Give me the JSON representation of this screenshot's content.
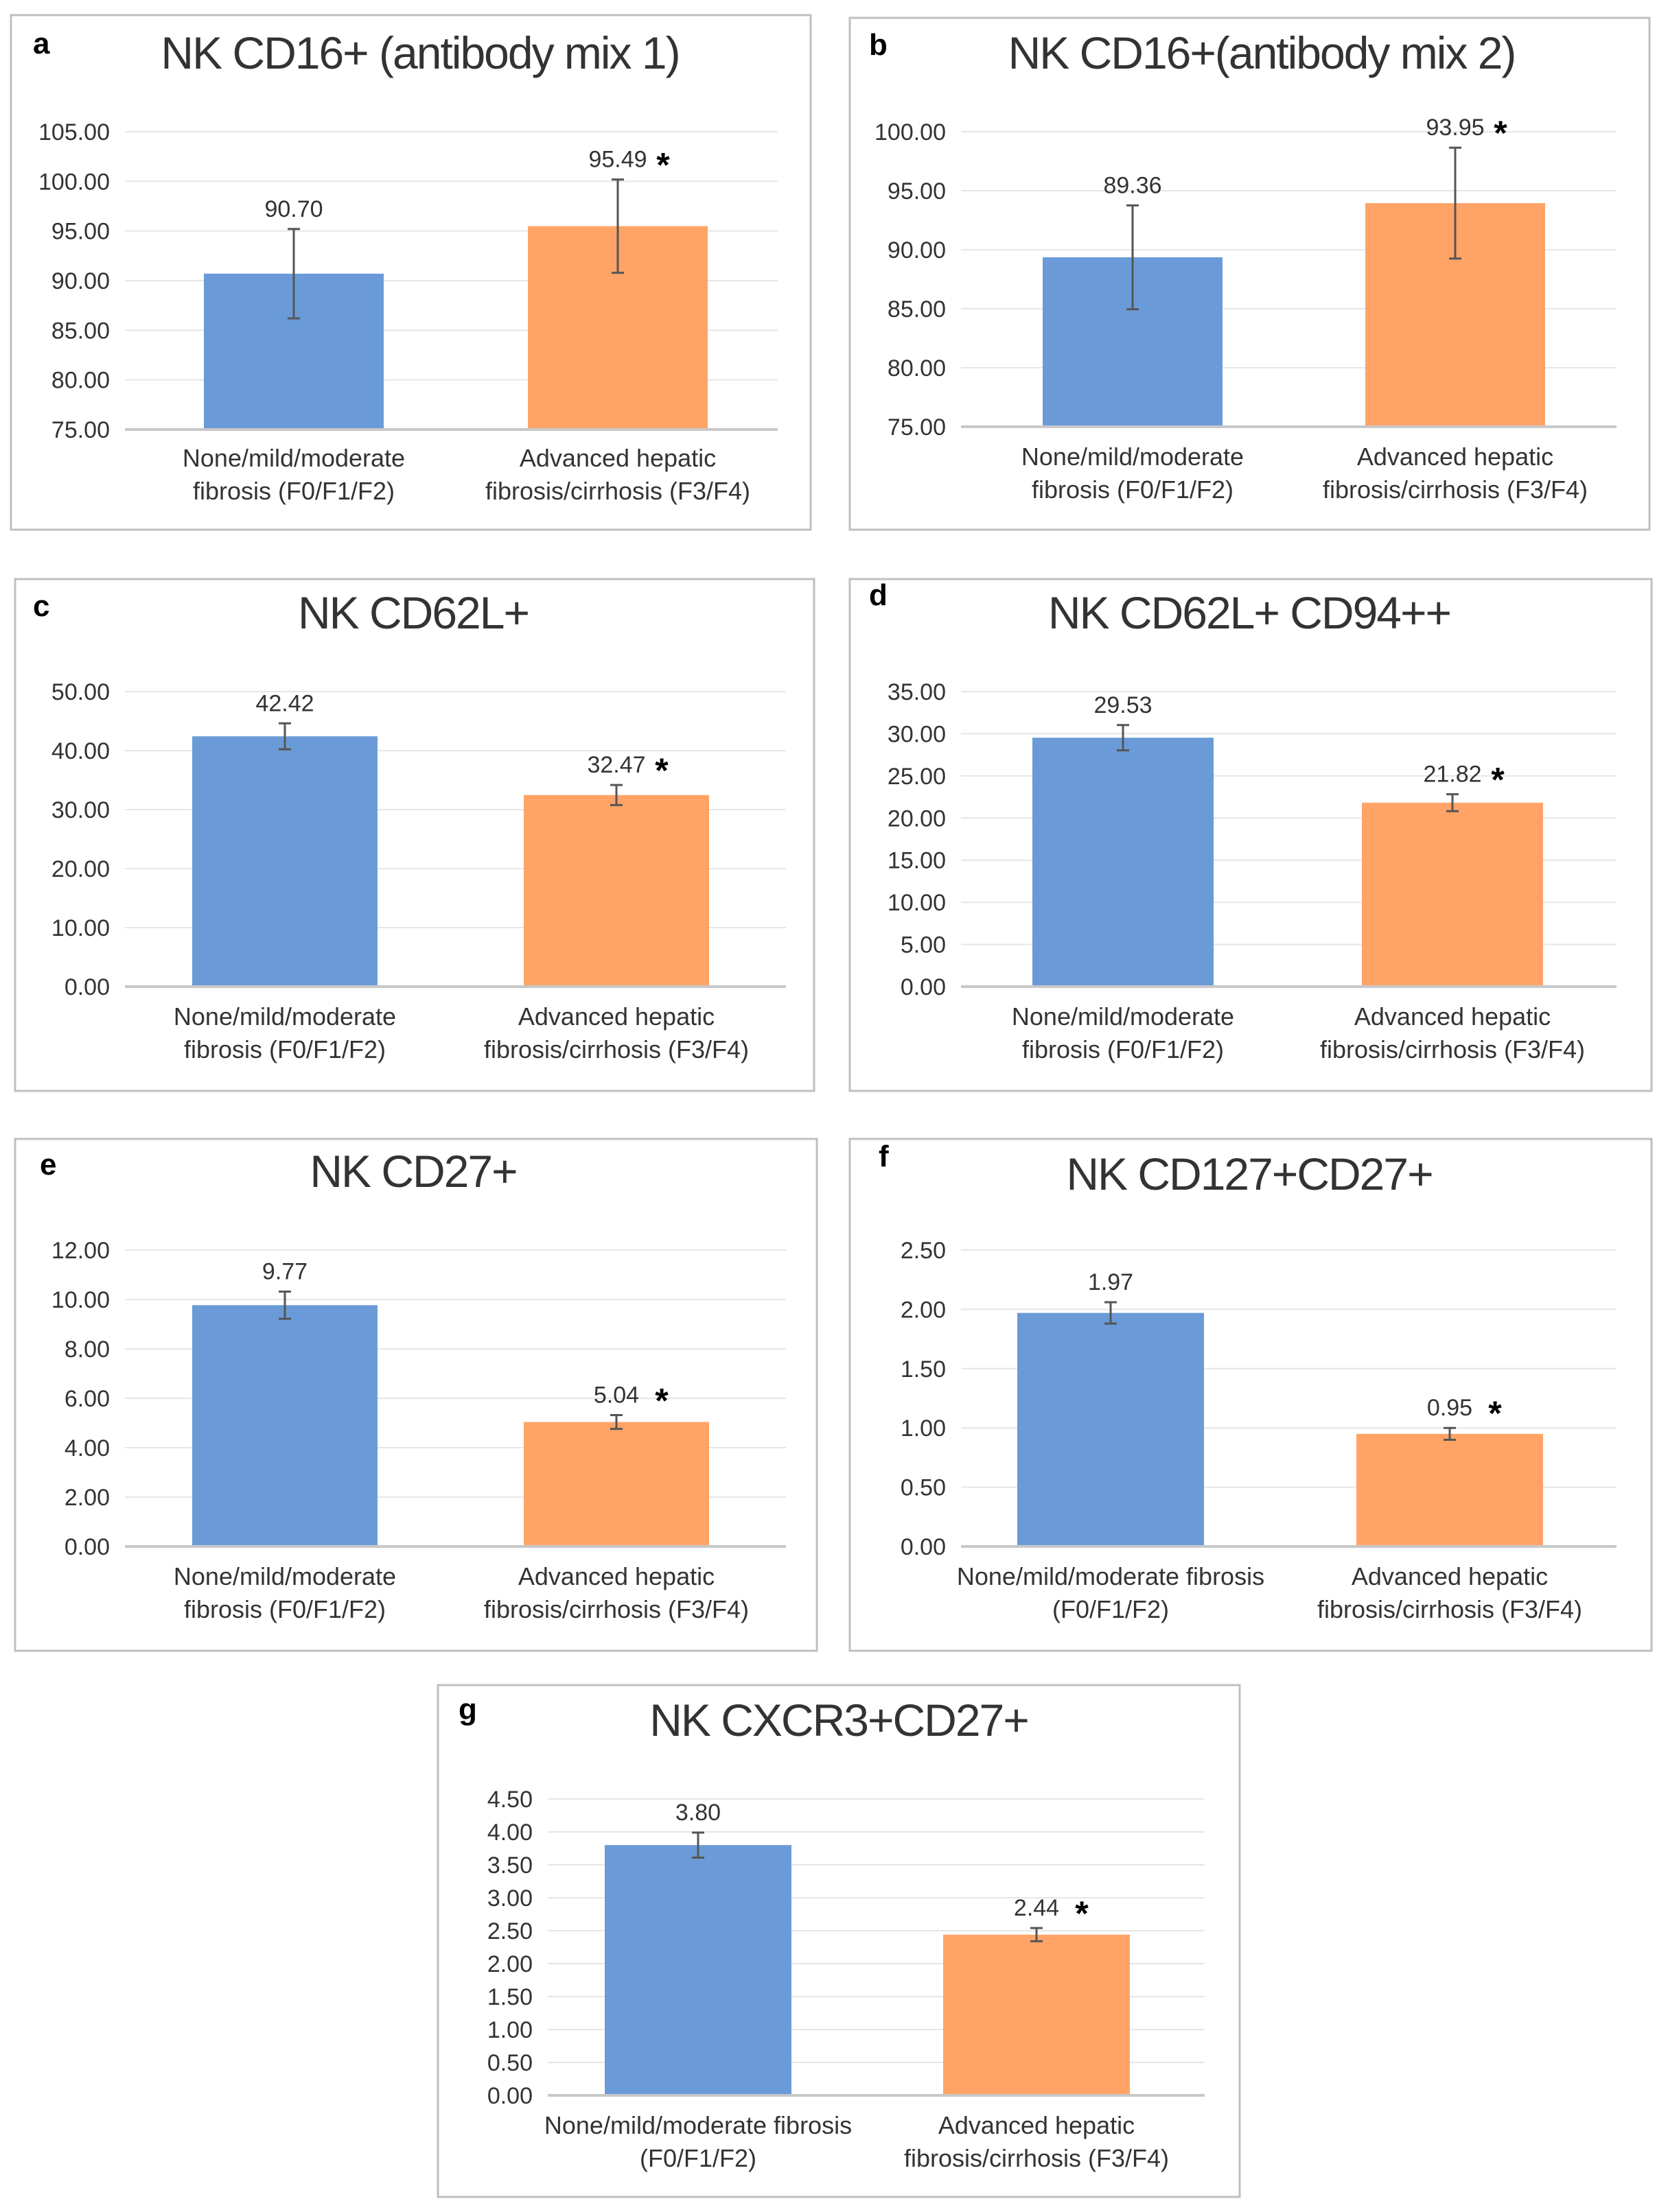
{
  "chart_data": [
    {
      "panel_letter": "a",
      "type": "bar",
      "title": "NK CD16+ (antibody  mix 1)",
      "categories": [
        [
          "None/mild/moderate",
          "fibrosis (F0/F1/F2)"
        ],
        [
          "Advanced hepatic",
          "fibrosis/cirrhosis (F3/F4)"
        ]
      ],
      "values": [
        90.7,
        95.49
      ],
      "value_labels": [
        "90.70",
        "95.49"
      ],
      "error": [
        4.5,
        4.7
      ],
      "significant": [
        false,
        true
      ],
      "ylim": [
        75,
        105
      ],
      "yticks": [
        75,
        80,
        85,
        90,
        95,
        100,
        105
      ],
      "ytick_labels": [
        "75.00",
        "80.00",
        "85.00",
        "90.00",
        "95.00",
        "100.00",
        "105.00"
      ]
    },
    {
      "panel_letter": "b",
      "type": "bar",
      "title": "NK CD16+(antibody  mix 2)",
      "categories": [
        [
          "None/mild/moderate",
          "fibrosis (F0/F1/F2)"
        ],
        [
          "Advanced hepatic",
          "fibrosis/cirrhosis (F3/F4)"
        ]
      ],
      "values": [
        89.36,
        93.95
      ],
      "value_labels": [
        "89.36",
        "93.95"
      ],
      "error": [
        4.4,
        4.7
      ],
      "significant": [
        false,
        true
      ],
      "ylim": [
        75,
        100
      ],
      "yticks": [
        75,
        80,
        85,
        90,
        95,
        100
      ],
      "ytick_labels": [
        "75.00",
        "80.00",
        "85.00",
        "90.00",
        "95.00",
        "100.00"
      ]
    },
    {
      "panel_letter": "c",
      "type": "bar",
      "title": "NK CD62L+",
      "categories": [
        [
          "None/mild/moderate",
          "fibrosis (F0/F1/F2)"
        ],
        [
          "Advanced hepatic",
          "fibrosis/cirrhosis (F3/F4)"
        ]
      ],
      "values": [
        42.42,
        32.47
      ],
      "value_labels": [
        "42.42",
        "32.47"
      ],
      "error": [
        2.2,
        1.7
      ],
      "significant": [
        false,
        true
      ],
      "ylim": [
        0,
        50
      ],
      "yticks": [
        0,
        10,
        20,
        30,
        40,
        50
      ],
      "ytick_labels": [
        "0.00",
        "10.00",
        "20.00",
        "30.00",
        "40.00",
        "50.00"
      ]
    },
    {
      "panel_letter": "d",
      "type": "bar",
      "title": "NK CD62L+ CD94++",
      "categories": [
        [
          "None/mild/moderate",
          "fibrosis (F0/F1/F2)"
        ],
        [
          "Advanced hepatic",
          "fibrosis/cirrhosis (F3/F4)"
        ]
      ],
      "values": [
        29.53,
        21.82
      ],
      "value_labels": [
        "29.53",
        "21.82"
      ],
      "error": [
        1.5,
        1.0
      ],
      "significant": [
        false,
        true
      ],
      "ylim": [
        0,
        35
      ],
      "yticks": [
        0,
        5,
        10,
        15,
        20,
        25,
        30,
        35
      ],
      "ytick_labels": [
        "0.00",
        "5.00",
        "10.00",
        "15.00",
        "20.00",
        "25.00",
        "30.00",
        "35.00"
      ]
    },
    {
      "panel_letter": "e",
      "type": "bar",
      "title": "NK CD27+",
      "categories": [
        [
          "None/mild/moderate",
          "fibrosis (F0/F1/F2)"
        ],
        [
          "Advanced hepatic",
          "fibrosis/cirrhosis (F3/F4)"
        ]
      ],
      "values": [
        9.77,
        5.04
      ],
      "value_labels": [
        "9.77",
        "5.04"
      ],
      "error": [
        0.55,
        0.28
      ],
      "significant": [
        false,
        true
      ],
      "ylim": [
        0,
        12
      ],
      "yticks": [
        0,
        2,
        4,
        6,
        8,
        10,
        12
      ],
      "ytick_labels": [
        "0.00",
        "2.00",
        "4.00",
        "6.00",
        "8.00",
        "10.00",
        "12.00"
      ]
    },
    {
      "panel_letter": "f",
      "type": "bar",
      "title": "NK CD127+CD27+",
      "categories": [
        [
          "None/mild/moderate fibrosis",
          "(F0/F1/F2)"
        ],
        [
          "Advanced hepatic",
          "fibrosis/cirrhosis (F3/F4)"
        ]
      ],
      "values": [
        1.97,
        0.95
      ],
      "value_labels": [
        "1.97",
        "0.95"
      ],
      "error": [
        0.09,
        0.05
      ],
      "significant": [
        false,
        true
      ],
      "ylim": [
        0,
        2.5
      ],
      "yticks": [
        0,
        0.5,
        1,
        1.5,
        2,
        2.5
      ],
      "ytick_labels": [
        "0.00",
        "0.50",
        "1.00",
        "1.50",
        "2.00",
        "2.50"
      ]
    },
    {
      "panel_letter": "g",
      "type": "bar",
      "title": "NK CXCR3+CD27+",
      "categories": [
        [
          "None/mild/moderate fibrosis",
          "(F0/F1/F2)"
        ],
        [
          "Advanced hepatic",
          "fibrosis/cirrhosis (F3/F4)"
        ]
      ],
      "values": [
        3.8,
        2.44
      ],
      "value_labels": [
        "3.80",
        "2.44"
      ],
      "error": [
        0.19,
        0.1
      ],
      "significant": [
        false,
        true
      ],
      "ylim": [
        0,
        4.5
      ],
      "yticks": [
        0,
        0.5,
        1,
        1.5,
        2,
        2.5,
        3,
        3.5,
        4,
        4.5
      ],
      "ytick_labels": [
        "0.00",
        "0.50",
        "1.00",
        "1.50",
        "2.00",
        "2.50",
        "3.00",
        "3.50",
        "4.00",
        "4.50"
      ]
    }
  ],
  "significance_marker": "*",
  "colors": {
    "series_1": "#6a9bd8",
    "series_2": "#ffa466",
    "grid": "#e6e6e6",
    "axis": "#c8c8c8",
    "frame": "#bfbfbf",
    "text": "#333333",
    "error_bar": "#555555"
  }
}
